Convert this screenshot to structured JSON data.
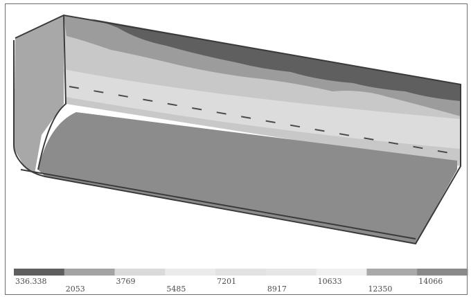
{
  "legend": {
    "labels": [
      "336.338",
      "2053",
      "3769",
      "5485",
      "7201",
      "8917",
      "10633",
      "12350",
      "14066"
    ],
    "colors": [
      "#5e5e5e",
      "#a3a3a3",
      "#dadada",
      "#ebebeb",
      "#e2e2e2",
      "#e6e6e6",
      "#f0f0f0",
      "#a9a9a9",
      "#898989"
    ]
  },
  "model": {
    "colors": {
      "bottom_plate": "#8c8c8c",
      "top_band_dark": "#5f5f5f",
      "mid_band": "#9c9c9c",
      "light_band": "#c8c8c8",
      "lightest_band": "#dcdcdc",
      "end_plate": "#a8a8a8",
      "edge": "#3a3a3a"
    }
  }
}
